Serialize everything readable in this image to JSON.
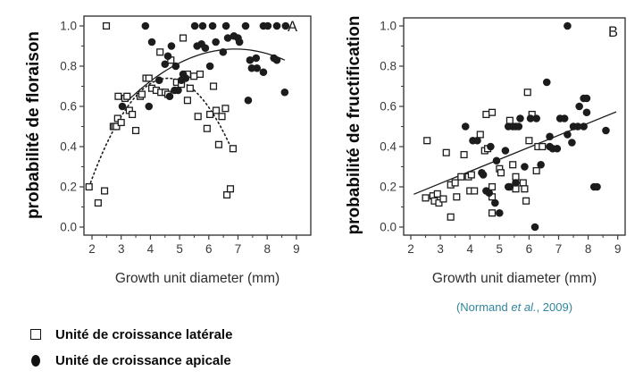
{
  "legend": {
    "items": [
      {
        "marker": "open-square-icon",
        "label": "Unité de croissance latérale"
      },
      {
        "marker": "filled-circle-icon",
        "label": "Unité de croissance apicale"
      }
    ]
  },
  "citation": {
    "parts": [
      "(Normand ",
      "et al.",
      ", 2009)"
    ],
    "color": "#31859c"
  },
  "chart_data": [
    {
      "type": "scatter",
      "panel_label": "A",
      "xlabel": "Growth unit diameter (mm)",
      "ylabel": "probabilité de floraison",
      "xlim": [
        1.7,
        9.5
      ],
      "ylim": [
        0.0,
        1.0
      ],
      "x_ticks": [
        2,
        3,
        4,
        5,
        6,
        7,
        8,
        9
      ],
      "y_ticks": [
        "0.0",
        "0.2",
        "0.4",
        "0.6",
        "0.8",
        "1.0"
      ],
      "grid": false,
      "legend_position": "none",
      "series": [
        {
          "name": "Unité de croissance latérale",
          "marker": "open-square",
          "points": [
            [
              1.9,
              0.2
            ],
            [
              2.21,
              0.12
            ],
            [
              2.43,
              0.18
            ],
            [
              2.49,
              1.0
            ],
            [
              2.73,
              0.5
            ],
            [
              2.78,
              0.5
            ],
            [
              2.84,
              0.5
            ],
            [
              2.88,
              0.54
            ],
            [
              3.0,
              0.52
            ],
            [
              2.9,
              0.65
            ],
            [
              3.13,
              0.64
            ],
            [
              3.2,
              0.65
            ],
            [
              3.28,
              0.58
            ],
            [
              3.38,
              0.56
            ],
            [
              3.5,
              0.48
            ],
            [
              3.65,
              0.65
            ],
            [
              3.71,
              0.66
            ],
            [
              3.85,
              0.74
            ],
            [
              3.95,
              0.74
            ],
            [
              4.05,
              0.69
            ],
            [
              4.2,
              0.68
            ],
            [
              4.36,
              0.67
            ],
            [
              4.51,
              0.67
            ],
            [
              4.6,
              0.66
            ],
            [
              4.33,
              0.87
            ],
            [
              4.7,
              0.83
            ],
            [
              5.12,
              0.94
            ],
            [
              4.9,
              0.72
            ],
            [
              5.06,
              0.71
            ],
            [
              5.27,
              0.76
            ],
            [
              5.49,
              0.75
            ],
            [
              5.7,
              0.76
            ],
            [
              5.36,
              0.69
            ],
            [
              6.16,
              0.7
            ],
            [
              5.27,
              0.63
            ],
            [
              5.63,
              0.55
            ],
            [
              5.94,
              0.49
            ],
            [
              6.04,
              0.56
            ],
            [
              6.25,
              0.58
            ],
            [
              6.45,
              0.55
            ],
            [
              6.57,
              0.59
            ],
            [
              6.34,
              0.41
            ],
            [
              6.83,
              0.39
            ],
            [
              6.62,
              0.16
            ],
            [
              6.74,
              0.19
            ]
          ]
        },
        {
          "name": "Unité de croissance apicale",
          "marker": "filled-circle",
          "points": [
            [
              3.83,
              1.0
            ],
            [
              5.52,
              1.0
            ],
            [
              5.79,
              1.0
            ],
            [
              6.13,
              1.0
            ],
            [
              6.59,
              1.0
            ],
            [
              7.26,
              1.0
            ],
            [
              7.87,
              1.0
            ],
            [
              8.02,
              1.0
            ],
            [
              8.33,
              1.0
            ],
            [
              8.63,
              1.0
            ],
            [
              4.05,
              0.92
            ],
            [
              4.72,
              0.9
            ],
            [
              5.6,
              0.9
            ],
            [
              5.75,
              0.91
            ],
            [
              6.24,
              0.92
            ],
            [
              5.88,
              0.89
            ],
            [
              6.65,
              0.94
            ],
            [
              6.86,
              0.95
            ],
            [
              7.0,
              0.94
            ],
            [
              7.05,
              0.92
            ],
            [
              4.6,
              0.85
            ],
            [
              6.49,
              0.87
            ],
            [
              4.5,
              0.81
            ],
            [
              4.87,
              0.8
            ],
            [
              6.04,
              0.8
            ],
            [
              7.41,
              0.83
            ],
            [
              7.62,
              0.84
            ],
            [
              7.47,
              0.79
            ],
            [
              7.65,
              0.79
            ],
            [
              7.87,
              0.77
            ],
            [
              8.23,
              0.84
            ],
            [
              8.33,
              0.83
            ],
            [
              4.3,
              0.73
            ],
            [
              5.06,
              0.73
            ],
            [
              5.21,
              0.74
            ],
            [
              5.12,
              0.76
            ],
            [
              3.04,
              0.6
            ],
            [
              3.95,
              0.6
            ],
            [
              4.66,
              0.65
            ],
            [
              4.83,
              0.68
            ],
            [
              4.95,
              0.68
            ],
            [
              7.35,
              0.63
            ],
            [
              8.6,
              0.67
            ]
          ]
        }
      ],
      "fits": [
        {
          "series": "apicale",
          "style": "solid",
          "type": "quadratic",
          "vertex": [
            6.9,
            0.885
          ],
          "a": -0.019,
          "domain": [
            3.2,
            8.7
          ]
        },
        {
          "series": "laterale",
          "style": "dotted",
          "type": "quadratic",
          "vertex": [
            4.6,
            0.74
          ],
          "a": -0.074,
          "domain": [
            1.9,
            6.9
          ]
        }
      ]
    },
    {
      "type": "scatter",
      "panel_label": "B",
      "xlabel": "Growth unit diameter (mm)",
      "ylabel": "probabilité de fructification",
      "xlim": [
        1.7,
        9.3
      ],
      "ylim": [
        0.0,
        1.0
      ],
      "x_ticks": [
        2,
        3,
        4,
        5,
        6,
        7,
        8,
        9
      ],
      "y_ticks": [
        "0.0",
        "0.2",
        "0.4",
        "0.6",
        "0.8",
        "1.0"
      ],
      "grid": false,
      "legend_position": "none",
      "series": [
        {
          "name": "Unité de croissance latérale",
          "marker": "open-square",
          "points": [
            [
              2.55,
              0.43
            ],
            [
              3.2,
              0.37
            ],
            [
              3.8,
              0.36
            ],
            [
              4.55,
              0.56
            ],
            [
              4.75,
              0.57
            ],
            [
              5.35,
              0.53
            ],
            [
              5.95,
              0.67
            ],
            [
              6.1,
              0.56
            ],
            [
              4.35,
              0.46
            ],
            [
              4.5,
              0.38
            ],
            [
              4.6,
              0.39
            ],
            [
              6.0,
              0.43
            ],
            [
              6.3,
              0.4
            ],
            [
              6.45,
              0.4
            ],
            [
              6.25,
              0.28
            ],
            [
              5.45,
              0.31
            ],
            [
              5.0,
              0.29
            ],
            [
              5.05,
              0.27
            ],
            [
              3.35,
              0.21
            ],
            [
              3.5,
              0.22
            ],
            [
              3.55,
              0.15
            ],
            [
              3.7,
              0.25
            ],
            [
              3.95,
              0.25
            ],
            [
              4.05,
              0.26
            ],
            [
              4.0,
              0.18
            ],
            [
              4.15,
              0.18
            ],
            [
              4.75,
              0.2
            ],
            [
              5.55,
              0.25
            ],
            [
              5.8,
              0.22
            ],
            [
              5.85,
              0.19
            ],
            [
              5.9,
              0.13
            ],
            [
              5.55,
              0.19
            ],
            [
              2.5,
              0.145
            ],
            [
              2.75,
              0.155
            ],
            [
              2.8,
              0.13
            ],
            [
              2.9,
              0.165
            ],
            [
              2.95,
              0.12
            ],
            [
              3.1,
              0.14
            ],
            [
              4.75,
              0.15
            ],
            [
              3.35,
              0.05
            ],
            [
              4.75,
              0.07
            ]
          ]
        },
        {
          "name": "Unité de croissance apicale",
          "marker": "filled-circle",
          "points": [
            [
              7.3,
              1.0
            ],
            [
              6.6,
              0.72
            ],
            [
              7.85,
              0.64
            ],
            [
              7.95,
              0.64
            ],
            [
              7.7,
              0.6
            ],
            [
              7.95,
              0.57
            ],
            [
              3.85,
              0.5
            ],
            [
              5.3,
              0.5
            ],
            [
              5.45,
              0.5
            ],
            [
              5.55,
              0.5
            ],
            [
              5.65,
              0.5
            ],
            [
              5.7,
              0.54
            ],
            [
              6.05,
              0.54
            ],
            [
              6.25,
              0.54
            ],
            [
              7.05,
              0.54
            ],
            [
              7.2,
              0.54
            ],
            [
              7.5,
              0.5
            ],
            [
              7.65,
              0.5
            ],
            [
              7.85,
              0.5
            ],
            [
              8.6,
              0.48
            ],
            [
              7.3,
              0.46
            ],
            [
              7.45,
              0.42
            ],
            [
              6.7,
              0.45
            ],
            [
              6.7,
              0.4
            ],
            [
              6.8,
              0.39
            ],
            [
              6.95,
              0.39
            ],
            [
              4.1,
              0.43
            ],
            [
              4.25,
              0.43
            ],
            [
              4.7,
              0.4
            ],
            [
              5.2,
              0.38
            ],
            [
              4.9,
              0.33
            ],
            [
              5.85,
              0.3
            ],
            [
              6.4,
              0.31
            ],
            [
              4.4,
              0.27
            ],
            [
              4.45,
              0.26
            ],
            [
              5.55,
              0.22
            ],
            [
              5.3,
              0.2
            ],
            [
              5.35,
              0.2
            ],
            [
              8.2,
              0.2
            ],
            [
              8.3,
              0.2
            ],
            [
              4.55,
              0.18
            ],
            [
              4.65,
              0.17
            ],
            [
              4.85,
              0.12
            ],
            [
              5.0,
              0.07
            ],
            [
              6.2,
              0.0
            ]
          ]
        }
      ],
      "fits": [
        {
          "series": "apicale",
          "style": "solid",
          "type": "linear",
          "from": [
            2.1,
            0.163
          ],
          "to": [
            8.95,
            0.573
          ]
        }
      ]
    }
  ]
}
